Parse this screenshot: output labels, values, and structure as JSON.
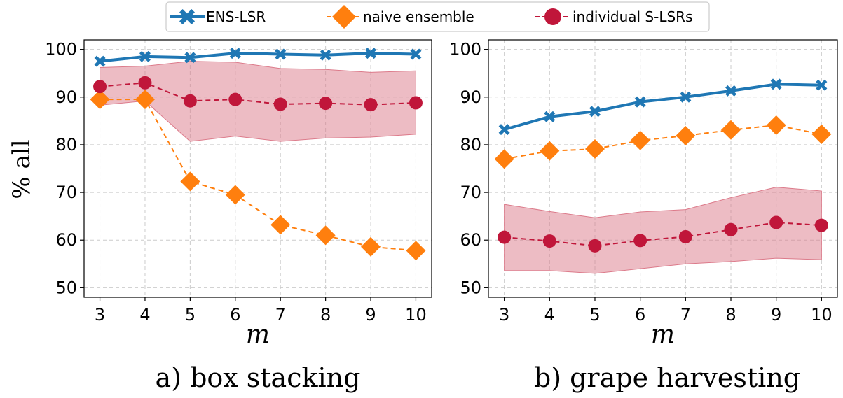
{
  "legend": {
    "ens": "ENS-LSR",
    "naive": "naive ensemble",
    "indiv": "individual S-LSRs"
  },
  "colors": {
    "ens": "#1f77b4",
    "naive": "#ff7f0e",
    "indiv": "#c0163a",
    "band": "#dc7a8a",
    "grid": "#cccccc"
  },
  "chart_data": [
    {
      "type": "line",
      "caption": "a) box stacking",
      "xlabel": "m",
      "ylabel": "% all",
      "x": [
        3,
        4,
        5,
        6,
        7,
        8,
        9,
        10
      ],
      "ylim": [
        48,
        102
      ],
      "yticks": [
        50,
        60,
        70,
        80,
        90,
        100
      ],
      "grid": true,
      "series": [
        {
          "name": "ENS-LSR",
          "values": [
            97.5,
            98.5,
            98.3,
            99.2,
            99.0,
            98.8,
            99.2,
            99.0
          ]
        },
        {
          "name": "naive ensemble",
          "values": [
            89.5,
            89.5,
            72.3,
            69.5,
            63.2,
            61.0,
            58.6,
            57.8
          ]
        },
        {
          "name": "individual S-LSRs",
          "values": [
            92.2,
            93.0,
            89.2,
            89.5,
            88.5,
            88.7,
            88.4,
            88.8
          ],
          "band_upper": [
            96.2,
            96.5,
            97.5,
            97.3,
            96.0,
            95.8,
            95.2,
            95.5
          ],
          "band_lower": [
            88.3,
            89.2,
            80.7,
            81.8,
            80.7,
            81.4,
            81.6,
            82.2
          ]
        }
      ]
    },
    {
      "type": "line",
      "caption": "b) grape harvesting",
      "xlabel": "m",
      "ylabel": "",
      "x": [
        3,
        4,
        5,
        6,
        7,
        8,
        9,
        10
      ],
      "ylim": [
        48,
        102
      ],
      "yticks": [
        50,
        60,
        70,
        80,
        90,
        100
      ],
      "grid": true,
      "series": [
        {
          "name": "ENS-LSR",
          "values": [
            83.2,
            85.9,
            87.0,
            89.0,
            90.0,
            91.3,
            92.7,
            92.5
          ]
        },
        {
          "name": "naive ensemble",
          "values": [
            77.0,
            78.7,
            79.1,
            80.9,
            81.9,
            83.1,
            84.1,
            82.2
          ]
        },
        {
          "name": "individual S-LSRs",
          "values": [
            60.6,
            59.8,
            58.8,
            59.9,
            60.7,
            62.2,
            63.7,
            63.1
          ],
          "band_upper": [
            67.5,
            66.0,
            64.7,
            65.9,
            66.4,
            68.9,
            71.1,
            70.3
          ],
          "band_lower": [
            53.6,
            53.6,
            53.0,
            54.0,
            55.0,
            55.5,
            56.2,
            55.9
          ]
        }
      ]
    }
  ]
}
